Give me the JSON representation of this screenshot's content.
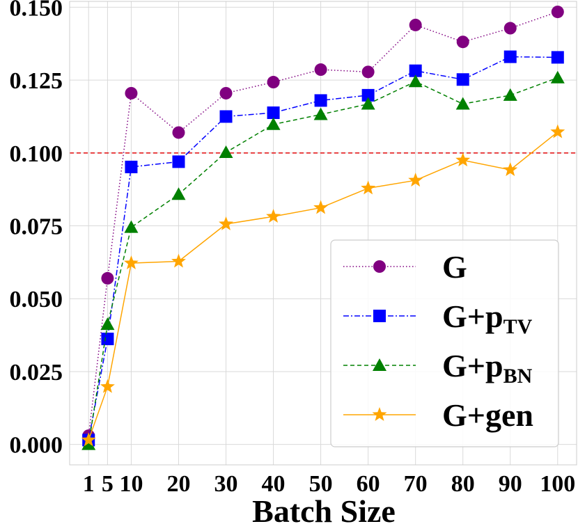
{
  "chart_data": {
    "type": "line",
    "title": "",
    "xlabel": "Batch Size",
    "ylabel": "",
    "x": [
      1,
      5,
      10,
      20,
      30,
      40,
      50,
      60,
      70,
      80,
      90,
      100
    ],
    "x_tick_labels": [
      "1",
      "5",
      "10",
      "20",
      "30",
      "40",
      "50",
      "60",
      "70",
      "80",
      "90",
      "100"
    ],
    "xlim": [
      -3,
      104
    ],
    "ylim": [
      -0.007,
      0.152
    ],
    "y_ticks": [
      0.0,
      0.025,
      0.05,
      0.075,
      0.1,
      0.125,
      0.15
    ],
    "y_tick_labels": [
      "0.000",
      "0.025",
      "0.050",
      "0.075",
      "0.100",
      "0.125",
      "0.150"
    ],
    "grid": true,
    "reference_line": {
      "y": 0.1,
      "color": "#e31a1c",
      "style": "dashed"
    },
    "legend_position": "lower-right",
    "series": [
      {
        "name": "G",
        "legend_main": "G",
        "legend_sub": "",
        "color": "#800080",
        "marker": "circle",
        "line_style": "dotted",
        "values": [
          0.003,
          0.057,
          0.1205,
          0.107,
          0.1205,
          0.1243,
          0.1286,
          0.1278,
          0.1439,
          0.1381,
          0.1428,
          0.1484
        ]
      },
      {
        "name": "G+pTV",
        "legend_main": "G+p",
        "legend_sub": "TV",
        "color": "#0000ff",
        "marker": "square",
        "line_style": "dashdot",
        "values": [
          0.0015,
          0.0362,
          0.0952,
          0.097,
          0.1125,
          0.1138,
          0.118,
          0.1198,
          0.1282,
          0.1252,
          0.133,
          0.1328
        ]
      },
      {
        "name": "G+pBN",
        "legend_main": "G+p",
        "legend_sub": "BN",
        "color": "#008000",
        "marker": "triangle",
        "line_style": "dashed",
        "values": [
          0.0,
          0.0412,
          0.0745,
          0.0858,
          0.1002,
          0.1098,
          0.1132,
          0.1168,
          0.1245,
          0.1168,
          0.1198,
          0.1258
        ]
      },
      {
        "name": "G+gen",
        "legend_main": "G+gen",
        "legend_sub": "",
        "color": "#ffa500",
        "marker": "star",
        "line_style": "solid",
        "values": [
          0.0015,
          0.0198,
          0.0622,
          0.0628,
          0.0756,
          0.0782,
          0.0812,
          0.0879,
          0.0906,
          0.0975,
          0.0942,
          0.1072
        ]
      }
    ]
  }
}
